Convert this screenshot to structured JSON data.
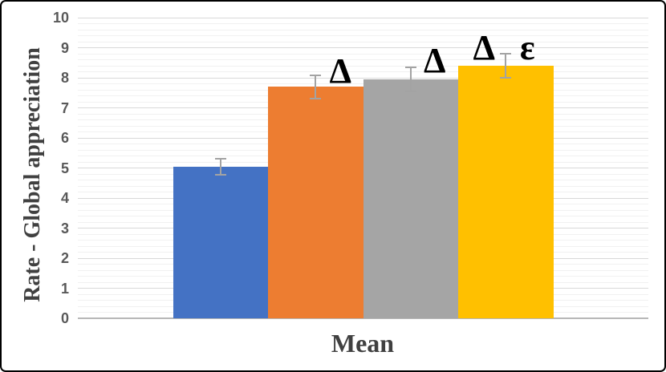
{
  "frame": {
    "background": "#ffffff",
    "border_color": "#000000"
  },
  "chart_data": {
    "type": "bar",
    "title": "",
    "xlabel": "Mean",
    "ylabel": "Rate - Global appreciation",
    "categories": [
      "Mean"
    ],
    "series": [
      {
        "name": "blue",
        "value": 5.05,
        "error": 0.27,
        "color": "#4472C4"
      },
      {
        "name": "orange",
        "value": 7.7,
        "error": 0.39,
        "color": "#ED7D31"
      },
      {
        "name": "gray",
        "value": 7.95,
        "error": 0.4,
        "color": "#A5A5A5"
      },
      {
        "name": "yellow",
        "value": 8.4,
        "error": 0.41,
        "color": "#FFC000"
      }
    ],
    "annotations": [
      {
        "bar": 1,
        "text": "Δ",
        "dx": 31,
        "baseline_dy": -2
      },
      {
        "bar": 2,
        "text": "Δ",
        "dx": 30,
        "baseline_dy": -6
      },
      {
        "bar": 3,
        "text": "Δ",
        "dx": -27,
        "baseline_dy": -5
      },
      {
        "bar": 3,
        "text": "ε",
        "dx": 27,
        "baseline_dy": -5
      }
    ],
    "ylim": [
      0,
      10
    ],
    "yticks": [
      0,
      1,
      2,
      3,
      4,
      5,
      6,
      7,
      8,
      9,
      10
    ],
    "minor_step": 0.2,
    "grid": {
      "enabled": true,
      "major_color": "#d9d9d9",
      "minor_color": "#f1f1f1",
      "axis_color": "#b7b7b7"
    },
    "error_bar_color": "#a3a3a3",
    "legend_position": "none",
    "text_colors": {
      "tick_labels": "#595959",
      "axis_titles": "#404040",
      "annotations": "#000000"
    }
  }
}
